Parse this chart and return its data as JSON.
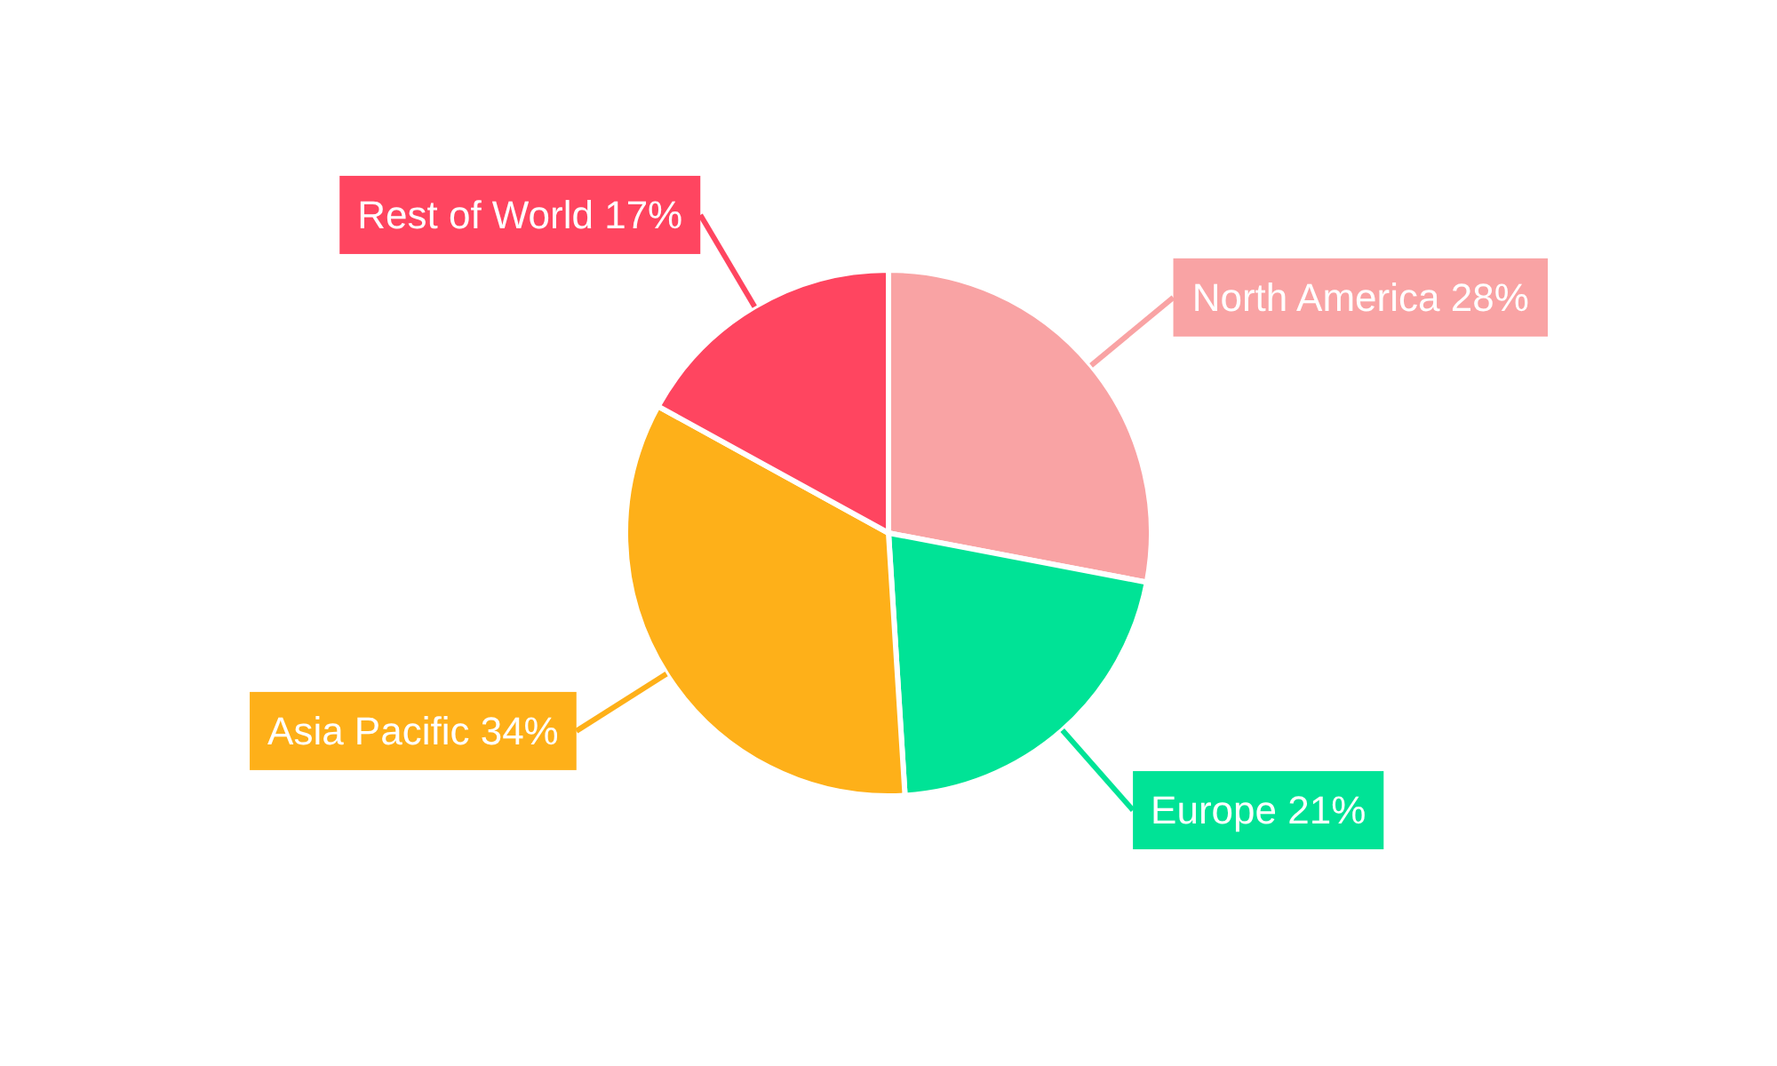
{
  "chart_data": {
    "type": "pie",
    "categories": [
      "North America",
      "Europe",
      "Asia Pacific",
      "Rest of World"
    ],
    "values": [
      28,
      21,
      34,
      17
    ],
    "value_labels": [
      "28%",
      "21%",
      "34%",
      "17%"
    ],
    "colors": [
      "#f9a3a4",
      "#00e396",
      "#feb019",
      "#ff4560"
    ]
  }
}
